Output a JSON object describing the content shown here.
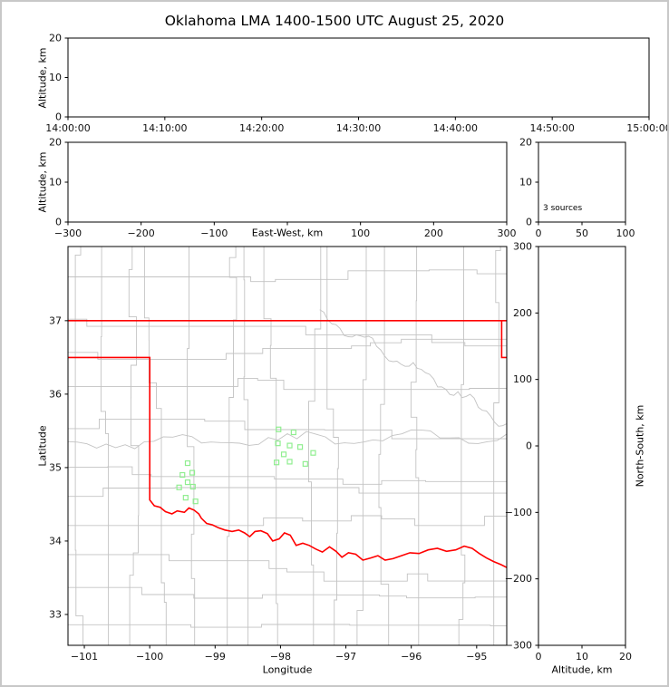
{
  "chart_data": {
    "type": "scatter",
    "title": "Oklahoma LMA 1400-1500 UTC August 25, 2020",
    "panels": {
      "time_altitude": {
        "ylabel": "Altitude, km",
        "y_range": [
          0,
          20
        ],
        "y_ticks": [
          0,
          10,
          20
        ],
        "y_tick_labels": [
          "0",
          "10",
          "20"
        ],
        "x_tick_labels": [
          "14:00:00",
          "14:10:00",
          "14:20:00",
          "14:30:00",
          "14:40:00",
          "14:50:00",
          "15:00:00"
        ],
        "points": []
      },
      "ew_altitude": {
        "xlabel": "East-West, km",
        "ylabel": "Altitude, km",
        "x_range": [
          -300,
          300
        ],
        "x_ticks": [
          -300,
          -200,
          -100,
          0,
          100,
          200,
          300
        ],
        "x_tick_labels": [
          "−300",
          "−200",
          "−100",
          "",
          "100",
          "200",
          "300"
        ],
        "y_range": [
          0,
          20
        ],
        "y_ticks": [
          0,
          10,
          20
        ],
        "y_tick_labels": [
          "0",
          "10",
          "20"
        ],
        "points": []
      },
      "altitude_histogram": {
        "annotation": "3 sources",
        "x_range": [
          0,
          100
        ],
        "x_ticks": [
          0,
          50,
          100
        ],
        "x_tick_labels": [
          "0",
          "50",
          "100"
        ],
        "y_range": [
          0,
          20
        ],
        "y_ticks": [
          0,
          10,
          20
        ],
        "y_tick_labels": [
          "0",
          "10",
          "20"
        ],
        "points": []
      },
      "plan_view_map": {
        "xlabel": "Longitude",
        "ylabel": "Latitude",
        "x_range": [
          -101.25,
          -94.54
        ],
        "x_ticks": [
          -101,
          -100,
          -99,
          -98,
          -97,
          -96,
          -95
        ],
        "x_tick_labels": [
          "−101",
          "−100",
          "−99",
          "−98",
          "−97",
          "−96",
          "−95"
        ],
        "y_range": [
          32.58,
          38.01
        ],
        "y_ticks": [
          33,
          34,
          35,
          36,
          37
        ],
        "y_tick_labels": [
          "33",
          "34",
          "35",
          "36",
          "37"
        ]
      },
      "ns_altitude": {
        "xlabel": "Altitude, km",
        "ylabel_right": "North-South, km",
        "x_range": [
          0,
          20
        ],
        "x_ticks": [
          0,
          10,
          20
        ],
        "x_tick_labels": [
          "0",
          "10",
          "20"
        ],
        "y_range": [
          -300,
          300
        ],
        "y_ticks": [
          300,
          200,
          100,
          0,
          -100,
          -200,
          -300
        ],
        "y_tick_labels": [
          "300",
          "200",
          "100",
          "0",
          "−100",
          "−200",
          "−300"
        ],
        "points": []
      }
    },
    "stations": [
      [
        -98.03,
        35.52
      ],
      [
        -97.8,
        35.48
      ],
      [
        -98.04,
        35.33
      ],
      [
        -97.86,
        35.3
      ],
      [
        -97.7,
        35.28
      ],
      [
        -97.95,
        35.18
      ],
      [
        -98.06,
        35.07
      ],
      [
        -97.86,
        35.08
      ],
      [
        -97.5,
        35.2
      ],
      [
        -97.62,
        35.05
      ],
      [
        -99.42,
        35.06
      ],
      [
        -99.5,
        34.9
      ],
      [
        -99.35,
        34.93
      ],
      [
        -99.42,
        34.8
      ],
      [
        -99.55,
        34.73
      ],
      [
        -99.34,
        34.74
      ],
      [
        -99.45,
        34.59
      ],
      [
        -99.3,
        34.54
      ]
    ],
    "state_border": {
      "segments": [
        [
          [
            -101.25,
            37.0
          ],
          [
            -94.54,
            37.0
          ]
        ],
        [
          [
            -94.618,
            37.0
          ],
          [
            -94.618,
            36.5
          ],
          [
            -94.54,
            36.5
          ]
        ],
        [
          [
            -101.25,
            36.5
          ],
          [
            -100.0,
            36.5
          ],
          [
            -100.0,
            34.56
          ],
          [
            -99.93,
            34.48
          ],
          [
            -99.84,
            34.46
          ],
          [
            -99.76,
            34.4
          ],
          [
            -99.66,
            34.37
          ],
          [
            -99.58,
            34.41
          ],
          [
            -99.47,
            34.39
          ],
          [
            -99.4,
            34.45
          ],
          [
            -99.32,
            34.42
          ],
          [
            -99.25,
            34.37
          ],
          [
            -99.21,
            34.31
          ],
          [
            -99.13,
            34.24
          ],
          [
            -99.04,
            34.22
          ],
          [
            -98.95,
            34.18
          ],
          [
            -98.85,
            34.15
          ],
          [
            -98.74,
            34.13
          ],
          [
            -98.64,
            34.15
          ],
          [
            -98.55,
            34.11
          ],
          [
            -98.47,
            34.06
          ],
          [
            -98.39,
            34.13
          ],
          [
            -98.3,
            34.14
          ],
          [
            -98.2,
            34.1
          ],
          [
            -98.12,
            34.0
          ],
          [
            -98.02,
            34.03
          ],
          [
            -97.94,
            34.11
          ],
          [
            -97.85,
            34.08
          ],
          [
            -97.76,
            33.94
          ],
          [
            -97.66,
            33.97
          ],
          [
            -97.56,
            33.94
          ],
          [
            -97.46,
            33.89
          ],
          [
            -97.36,
            33.85
          ],
          [
            -97.25,
            33.92
          ],
          [
            -97.15,
            33.86
          ],
          [
            -97.06,
            33.78
          ],
          [
            -96.96,
            33.84
          ],
          [
            -96.85,
            33.82
          ],
          [
            -96.74,
            33.74
          ],
          [
            -96.62,
            33.77
          ],
          [
            -96.51,
            33.8
          ],
          [
            -96.4,
            33.74
          ],
          [
            -96.28,
            33.76
          ],
          [
            -96.15,
            33.8
          ],
          [
            -96.02,
            33.84
          ],
          [
            -95.88,
            33.83
          ],
          [
            -95.74,
            33.88
          ],
          [
            -95.6,
            33.9
          ],
          [
            -95.46,
            33.86
          ],
          [
            -95.32,
            33.88
          ],
          [
            -95.19,
            33.93
          ],
          [
            -95.07,
            33.9
          ],
          [
            -94.96,
            33.83
          ],
          [
            -94.85,
            33.77
          ],
          [
            -94.74,
            33.72
          ],
          [
            -94.63,
            33.68
          ],
          [
            -94.54,
            33.64
          ]
        ]
      ]
    },
    "colors": {
      "state_border": "#ff0000",
      "county_lines": "#c3c3c3",
      "station_marker": "#90EE90",
      "axis": "#000000"
    }
  }
}
